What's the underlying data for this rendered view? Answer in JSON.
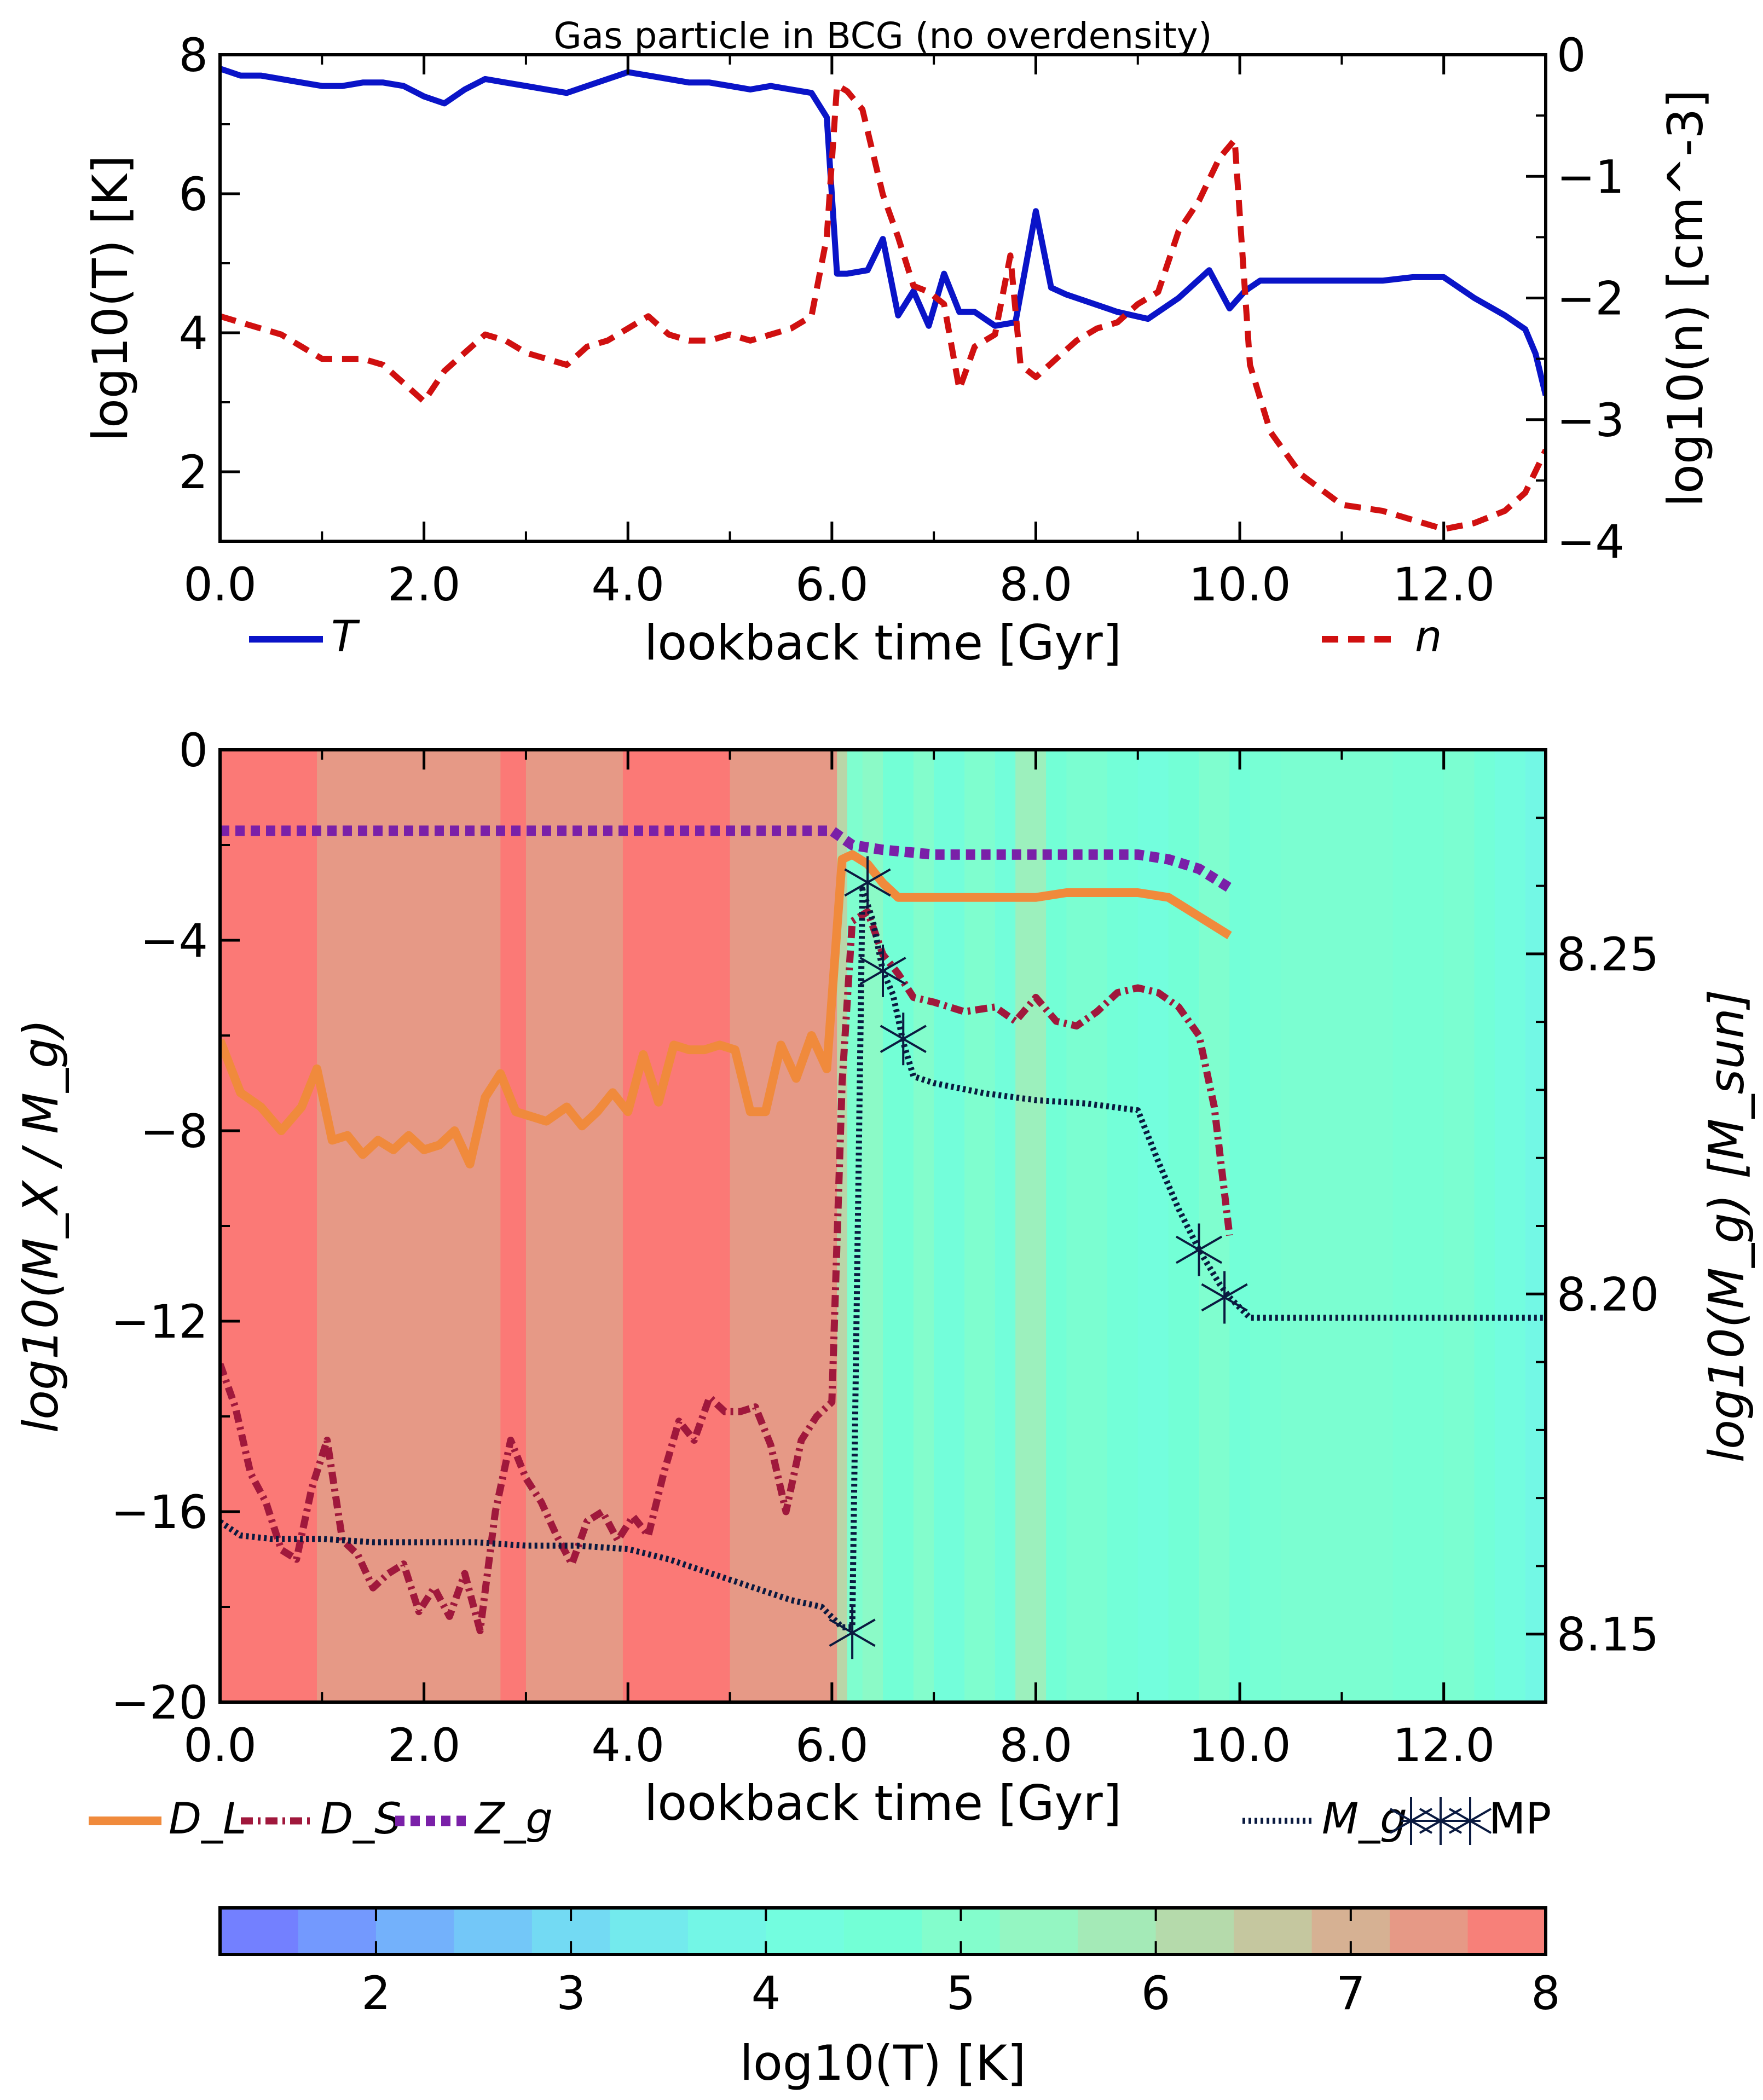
{
  "chart_data": [
    {
      "type": "line",
      "title": "Gas particle in BCG (no overdensity)",
      "xlabel": "lookback time [Gyr]",
      "ylabel_left": "log10(T) [K]",
      "ylabel_right": "log10(n) [cm^-3]",
      "xlim": [
        0,
        13
      ],
      "ylim_left": [
        1,
        8
      ],
      "ylim_right": [
        -4,
        0
      ],
      "x_ticks": [
        "0.0",
        "2.0",
        "4.0",
        "6.0",
        "8.0",
        "10.0",
        "12.0"
      ],
      "y_ticks_left": [
        "2",
        "4",
        "6",
        "8"
      ],
      "y_ticks_right": [
        "−4",
        "−3",
        "−2",
        "−1",
        "0"
      ],
      "legend": {
        "placement": "below-plot",
        "items": [
          {
            "label": "T",
            "color": "#0a14c8",
            "style": "solid"
          },
          {
            "label": "n",
            "color": "#d01010",
            "style": "dashed"
          }
        ]
      },
      "series": [
        {
          "name": "T",
          "axis": "left",
          "color": "#0a14c8",
          "x": [
            0.0,
            0.2,
            0.4,
            0.6,
            0.8,
            1.0,
            1.2,
            1.4,
            1.6,
            1.8,
            2.0,
            2.2,
            2.4,
            2.6,
            2.8,
            3.0,
            3.2,
            3.4,
            3.6,
            3.8,
            4.0,
            4.2,
            4.4,
            4.6,
            4.8,
            5.0,
            5.2,
            5.4,
            5.6,
            5.8,
            5.95,
            6.05,
            6.15,
            6.35,
            6.5,
            6.65,
            6.8,
            6.95,
            7.1,
            7.25,
            7.4,
            7.6,
            7.8,
            8.0,
            8.15,
            8.3,
            8.5,
            8.8,
            9.1,
            9.4,
            9.7,
            9.9,
            10.05,
            10.2,
            10.5,
            10.8,
            11.1,
            11.4,
            11.7,
            12.0,
            12.3,
            12.6,
            12.8,
            12.9,
            13.0
          ],
          "values": [
            7.8,
            7.7,
            7.7,
            7.65,
            7.6,
            7.55,
            7.55,
            7.6,
            7.6,
            7.55,
            7.4,
            7.3,
            7.5,
            7.65,
            7.6,
            7.55,
            7.5,
            7.45,
            7.55,
            7.65,
            7.75,
            7.7,
            7.65,
            7.6,
            7.6,
            7.55,
            7.5,
            7.55,
            7.5,
            7.45,
            7.1,
            4.85,
            4.85,
            4.9,
            5.35,
            4.25,
            4.6,
            4.1,
            4.85,
            4.3,
            4.3,
            4.1,
            4.15,
            5.75,
            4.65,
            4.55,
            4.45,
            4.3,
            4.2,
            4.5,
            4.9,
            4.35,
            4.6,
            4.75,
            4.75,
            4.75,
            4.75,
            4.75,
            4.8,
            4.8,
            4.5,
            4.25,
            4.05,
            3.7,
            3.1
          ]
        },
        {
          "name": "n",
          "axis": "right",
          "color": "#d01010",
          "x": [
            0.0,
            0.2,
            0.4,
            0.6,
            0.8,
            1.0,
            1.2,
            1.4,
            1.6,
            1.8,
            2.0,
            2.2,
            2.4,
            2.6,
            2.8,
            3.0,
            3.2,
            3.4,
            3.6,
            3.8,
            4.0,
            4.2,
            4.4,
            4.6,
            4.8,
            5.0,
            5.2,
            5.4,
            5.6,
            5.8,
            5.95,
            6.05,
            6.15,
            6.3,
            6.5,
            6.65,
            6.8,
            6.95,
            7.1,
            7.25,
            7.4,
            7.6,
            7.75,
            7.85,
            8.0,
            8.2,
            8.4,
            8.6,
            8.8,
            9.0,
            9.2,
            9.4,
            9.6,
            9.8,
            9.95,
            10.1,
            10.3,
            10.6,
            11.0,
            11.4,
            11.8,
            12.0,
            12.3,
            12.6,
            12.8,
            13.0
          ],
          "values": [
            -2.15,
            -2.2,
            -2.25,
            -2.3,
            -2.4,
            -2.5,
            -2.5,
            -2.5,
            -2.55,
            -2.7,
            -2.85,
            -2.6,
            -2.45,
            -2.3,
            -2.35,
            -2.45,
            -2.5,
            -2.55,
            -2.4,
            -2.35,
            -2.25,
            -2.15,
            -2.3,
            -2.35,
            -2.35,
            -2.3,
            -2.35,
            -2.3,
            -2.25,
            -2.15,
            -1.5,
            -0.25,
            -0.3,
            -0.45,
            -1.15,
            -1.5,
            -1.9,
            -1.95,
            -2.05,
            -2.75,
            -2.4,
            -2.3,
            -1.65,
            -2.55,
            -2.65,
            -2.5,
            -2.35,
            -2.25,
            -2.2,
            -2.05,
            -1.95,
            -1.45,
            -1.2,
            -0.85,
            -0.7,
            -2.55,
            -3.1,
            -3.45,
            -3.7,
            -3.75,
            -3.85,
            -3.9,
            -3.85,
            -3.75,
            -3.6,
            -3.25
          ]
        }
      ]
    },
    {
      "type": "line",
      "title": "",
      "xlabel": "lookback time [Gyr]",
      "ylabel_left": "log10(M_X / M_g)",
      "ylabel_right": "log10(M_g) [M_sun]",
      "xlim": [
        0,
        13
      ],
      "ylim_left": [
        -20,
        0
      ],
      "ylim_right": [
        8.14,
        8.28
      ],
      "x_ticks": [
        "0.0",
        "2.0",
        "4.0",
        "6.0",
        "8.0",
        "10.0",
        "12.0"
      ],
      "y_ticks_left": [
        "−20",
        "−16",
        "−12",
        "−8",
        "−4",
        "0"
      ],
      "y_ticks_right": [
        "8.15",
        "8.20",
        "8.25"
      ],
      "legend": {
        "placement": "below-plot",
        "items": [
          {
            "label": "D_L",
            "color": "#f08a3c",
            "style": "solid"
          },
          {
            "label": "D_S",
            "color": "#a0183c",
            "style": "dashdot"
          },
          {
            "label": "Z_g",
            "color": "#7a20a8",
            "style": "dotted"
          },
          {
            "label": "M_g",
            "color": "#0a1a40",
            "style": "fine-dotted"
          },
          {
            "label": "MP",
            "color": "#0a1a40",
            "style": "star-markers"
          }
        ]
      },
      "background_temperature_bands": {
        "x_edges": [
          0.0,
          0.95,
          2.75,
          3.0,
          3.95,
          5.0,
          6.05,
          6.15,
          6.3,
          6.5,
          6.8,
          7.0,
          7.3,
          7.6,
          7.8,
          8.1,
          8.3,
          8.7,
          9.0,
          9.3,
          9.6,
          9.9,
          10.1,
          10.4,
          11.0,
          11.5,
          12.0,
          12.3,
          12.5,
          12.8,
          13.0
        ],
        "log10T": [
          7.9,
          7.4,
          7.9,
          7.4,
          7.9,
          7.4,
          6.3,
          4.9,
          5.2,
          4.6,
          5.0,
          4.4,
          4.9,
          4.4,
          5.6,
          4.6,
          4.8,
          4.5,
          4.3,
          4.6,
          4.9,
          4.5,
          4.7,
          4.8,
          4.8,
          4.7,
          4.8,
          4.5,
          4.2,
          3.9
        ]
      },
      "series": [
        {
          "name": "D_L",
          "axis": "left",
          "color": "#f08a3c",
          "x": [
            0.0,
            0.2,
            0.4,
            0.6,
            0.8,
            0.95,
            1.1,
            1.25,
            1.4,
            1.55,
            1.7,
            1.85,
            2.0,
            2.15,
            2.3,
            2.45,
            2.6,
            2.75,
            2.9,
            3.05,
            3.2,
            3.4,
            3.55,
            3.7,
            3.85,
            4.0,
            4.15,
            4.3,
            4.45,
            4.6,
            4.75,
            4.9,
            5.05,
            5.2,
            5.35,
            5.5,
            5.65,
            5.8,
            5.95,
            6.1,
            6.2,
            6.35,
            6.5,
            6.65,
            6.8,
            7.5,
            8.0,
            8.3,
            8.6,
            9.0,
            9.3,
            9.6,
            9.9
          ],
          "values": [
            -6.1,
            -7.2,
            -7.5,
            -8.0,
            -7.5,
            -6.7,
            -8.2,
            -8.1,
            -8.5,
            -8.2,
            -8.4,
            -8.1,
            -8.4,
            -8.3,
            -8.0,
            -8.7,
            -7.3,
            -6.8,
            -7.6,
            -7.7,
            -7.8,
            -7.5,
            -7.9,
            -7.6,
            -7.2,
            -7.6,
            -6.4,
            -7.4,
            -6.2,
            -6.3,
            -6.3,
            -6.2,
            -6.3,
            -7.6,
            -7.6,
            -6.2,
            -6.9,
            -6.0,
            -6.7,
            -2.3,
            -2.2,
            -2.4,
            -2.8,
            -3.1,
            -3.1,
            -3.1,
            -3.1,
            -3.0,
            -3.0,
            -3.0,
            -3.1,
            -3.5,
            -3.9
          ]
        },
        {
          "name": "D_S",
          "axis": "left",
          "color": "#a0183c",
          "x": [
            0.0,
            0.15,
            0.3,
            0.45,
            0.6,
            0.75,
            0.9,
            1.05,
            1.2,
            1.35,
            1.5,
            1.65,
            1.8,
            1.95,
            2.1,
            2.25,
            2.4,
            2.55,
            2.7,
            2.85,
            3.0,
            3.15,
            3.3,
            3.45,
            3.6,
            3.75,
            3.9,
            4.05,
            4.2,
            4.35,
            4.5,
            4.65,
            4.8,
            4.95,
            5.1,
            5.25,
            5.4,
            5.55,
            5.7,
            5.85,
            6.0,
            6.1,
            6.2,
            6.35,
            6.5,
            6.65,
            6.8,
            7.0,
            7.3,
            7.6,
            7.8,
            8.0,
            8.2,
            8.4,
            8.6,
            8.8,
            9.0,
            9.2,
            9.4,
            9.6,
            9.75,
            9.9
          ],
          "values": [
            -12.9,
            -13.8,
            -15.2,
            -15.8,
            -16.8,
            -17.0,
            -15.5,
            -14.5,
            -16.6,
            -16.9,
            -17.6,
            -17.3,
            -17.1,
            -18.1,
            -17.6,
            -18.2,
            -17.3,
            -18.5,
            -16.0,
            -14.5,
            -15.3,
            -15.8,
            -16.5,
            -17.1,
            -16.2,
            -16.0,
            -16.6,
            -16.1,
            -16.5,
            -15.2,
            -14.1,
            -14.5,
            -13.6,
            -13.9,
            -13.9,
            -13.8,
            -14.6,
            -16.0,
            -14.5,
            -14.0,
            -13.7,
            -7.0,
            -3.6,
            -3.4,
            -4.3,
            -4.7,
            -5.2,
            -5.3,
            -5.5,
            -5.4,
            -5.7,
            -5.2,
            -5.7,
            -5.8,
            -5.5,
            -5.1,
            -5.0,
            -5.1,
            -5.4,
            -6.0,
            -7.5,
            -10.2
          ]
        },
        {
          "name": "Z_g",
          "axis": "left",
          "color": "#7a20a8",
          "x": [
            0.0,
            1.0,
            2.0,
            3.0,
            4.0,
            5.0,
            6.0,
            6.2,
            6.5,
            7.0,
            7.5,
            8.0,
            8.5,
            9.0,
            9.3,
            9.6,
            9.9
          ],
          "values": [
            -1.7,
            -1.7,
            -1.7,
            -1.7,
            -1.7,
            -1.7,
            -1.7,
            -2.0,
            -2.1,
            -2.2,
            -2.2,
            -2.2,
            -2.2,
            -2.2,
            -2.3,
            -2.5,
            -2.9
          ]
        },
        {
          "name": "M_g",
          "axis": "right",
          "color": "#0a1a40",
          "x": [
            0.0,
            0.2,
            0.5,
            1.0,
            1.5,
            2.0,
            2.5,
            3.0,
            3.5,
            4.0,
            4.4,
            4.8,
            5.2,
            5.6,
            5.9,
            6.1,
            6.2,
            6.3,
            6.4,
            6.5,
            6.6,
            6.7,
            6.8,
            7.0,
            7.5,
            8.0,
            8.5,
            9.0,
            9.2,
            9.4,
            9.6,
            9.8,
            9.9,
            10.1,
            10.5,
            11.0,
            12.0,
            13.0
          ],
          "values": [
            8.1665,
            8.1645,
            8.164,
            8.164,
            8.1635,
            8.1635,
            8.1635,
            8.163,
            8.163,
            8.1625,
            8.161,
            8.159,
            8.157,
            8.155,
            8.154,
            8.151,
            8.151,
            8.2595,
            8.255,
            8.2475,
            8.244,
            8.237,
            8.232,
            8.231,
            8.2295,
            8.2285,
            8.228,
            8.227,
            8.2195,
            8.2125,
            8.2065,
            8.2015,
            8.1995,
            8.1965,
            8.1965,
            8.1965,
            8.1965,
            8.1965
          ]
        },
        {
          "name": "MP",
          "axis": "right",
          "color": "#0a1a40",
          "marker": "star",
          "x": [
            6.2,
            6.35,
            6.5,
            6.7,
            9.6,
            9.85
          ],
          "values": [
            8.1502,
            8.2605,
            8.2475,
            8.2375,
            8.2065,
            8.1995
          ]
        }
      ]
    },
    {
      "type": "colorbar",
      "label": "log10(T) [K]",
      "range": [
        1.2,
        8
      ],
      "ticks": [
        "2",
        "3",
        "4",
        "5",
        "6",
        "7",
        "8"
      ],
      "colormap": "rainbow"
    }
  ]
}
